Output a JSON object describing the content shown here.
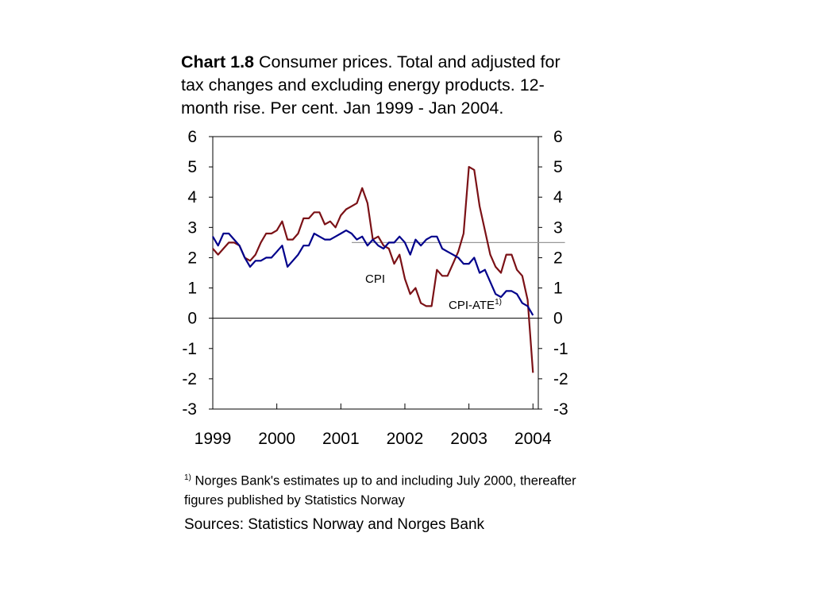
{
  "title": {
    "label": "Chart 1.8",
    "text": "Consumer prices. Total and adjusted for tax changes and excluding energy products. 12-month rise. Per cent. Jan 1999 - Jan 2004."
  },
  "footnote": {
    "marker": "1)",
    "text": "Norges Bank's estimates up to and including July 2000, thereafter figures published by Statistics Norway"
  },
  "sources": "Sources: Statistics Norway and Norges Bank",
  "chart_data": {
    "type": "line",
    "ylim": [
      -3,
      6
    ],
    "xlim": [
      1999.0,
      2004.0833
    ],
    "y_ticks": [
      -3,
      -2,
      -1,
      0,
      1,
      2,
      3,
      4,
      5,
      6
    ],
    "x_ticks": [
      "1999",
      "2000",
      "2001",
      "2002",
      "2003",
      "2004"
    ],
    "x_tick_positions": [
      1999,
      2000,
      2001,
      2002,
      2003,
      2004
    ],
    "grid": false,
    "zero_line": true,
    "reference_line": {
      "y": 2.5,
      "from": 2001.17,
      "to": 2004.5,
      "color": "#999999"
    },
    "annotations": [
      {
        "text": "CPI",
        "sup": ""
      },
      {
        "text": "CPI-ATE",
        "sup": "1)"
      }
    ],
    "x_start": 1999.0,
    "x_step": 0.0833333,
    "series": [
      {
        "name": "CPI",
        "color": "#7b1116",
        "values": [
          2.3,
          2.1,
          2.3,
          2.5,
          2.5,
          2.4,
          2.0,
          1.9,
          2.1,
          2.5,
          2.8,
          2.8,
          2.9,
          3.2,
          2.6,
          2.6,
          2.8,
          3.3,
          3.3,
          3.5,
          3.5,
          3.1,
          3.2,
          3.0,
          3.4,
          3.6,
          3.7,
          3.8,
          4.3,
          3.8,
          2.6,
          2.7,
          2.4,
          2.3,
          1.8,
          2.1,
          1.3,
          0.8,
          1.0,
          0.5,
          0.4,
          0.4,
          1.6,
          1.4,
          1.4,
          1.8,
          2.2,
          2.8,
          5.0,
          4.9,
          3.7,
          2.9,
          2.1,
          1.7,
          1.5,
          2.1,
          2.1,
          1.6,
          1.4,
          0.6,
          -1.8
        ]
      },
      {
        "name": "CPI-ATE",
        "color": "#00008b",
        "values": [
          2.7,
          2.4,
          2.8,
          2.8,
          2.6,
          2.4,
          2.0,
          1.7,
          1.9,
          1.9,
          2.0,
          2.0,
          2.2,
          2.4,
          1.7,
          1.9,
          2.1,
          2.4,
          2.4,
          2.8,
          2.7,
          2.6,
          2.6,
          2.7,
          2.8,
          2.9,
          2.8,
          2.6,
          2.7,
          2.4,
          2.6,
          2.4,
          2.3,
          2.5,
          2.5,
          2.7,
          2.5,
          2.1,
          2.6,
          2.4,
          2.6,
          2.7,
          2.7,
          2.3,
          2.2,
          2.1,
          2.0,
          1.8,
          1.8,
          2.0,
          1.5,
          1.6,
          1.2,
          0.8,
          0.7,
          0.9,
          0.9,
          0.8,
          0.5,
          0.4,
          0.1
        ]
      }
    ]
  }
}
